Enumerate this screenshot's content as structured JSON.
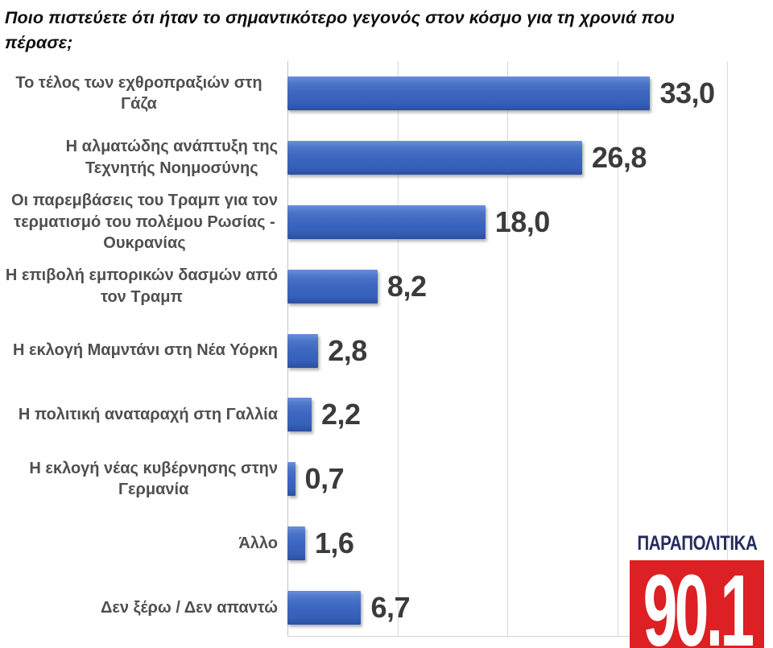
{
  "title": "Ποιο πιστεύετε ότι ήταν το σημαντικότερο γεγονός στον κόσμο για τη χρονιά που πέρασε;",
  "chart_data": {
    "type": "bar",
    "orientation": "horizontal",
    "title": "Ποιο πιστεύετε ότι ήταν το σημαντικότερο γεγονός στον κόσμο για τη χρονιά που πέρασε;",
    "categories": [
      "Το τέλος των εχθροπραξιών στη Γάζα",
      "Η αλματώδης ανάπτυξη της\nΤεχνητής Νοημοσύνης",
      "Οι παρεμβάσεις του Τραμπ  για τον\nτερματισμό του πολέμου Ρωσίας -\nΟυκρανίας",
      "Η επιβολή εμπορικών δασμών από\nτον Τραμπ",
      "Η εκλογή Μαμντάνι στη Νέα Υόρκη",
      "Η πολιτική αναταραχή στη Γαλλία",
      "Η εκλογή νέας κυβέρνησης στην\nΓερμανία",
      "Άλλο",
      "Δεν ξέρω / Δεν απαντώ"
    ],
    "values": [
      33.0,
      26.8,
      18.0,
      8.2,
      2.8,
      2.2,
      0.7,
      1.6,
      6.7
    ],
    "value_labels": [
      "33,0",
      "26,8",
      "18,0",
      "8,2",
      "2,8",
      "2,2",
      "0,7",
      "1,6",
      "6,7"
    ],
    "xlim": [
      0,
      40
    ],
    "gridline_values": [
      10,
      20,
      30,
      40
    ],
    "grid": true,
    "legend": "none",
    "bar_color": "#3E66BE",
    "value_label_color": "#3B3B3B",
    "category_label_color": "#4F4F4F",
    "decimal_separator": ","
  },
  "logo": {
    "station_name": "ΠΑΡΑΠΟΛΙΤΙΚΑ",
    "frequency": "90.1",
    "name_color": "#232C5E",
    "box_color": "#DC2023",
    "frequency_color": "#FFFFFF"
  }
}
